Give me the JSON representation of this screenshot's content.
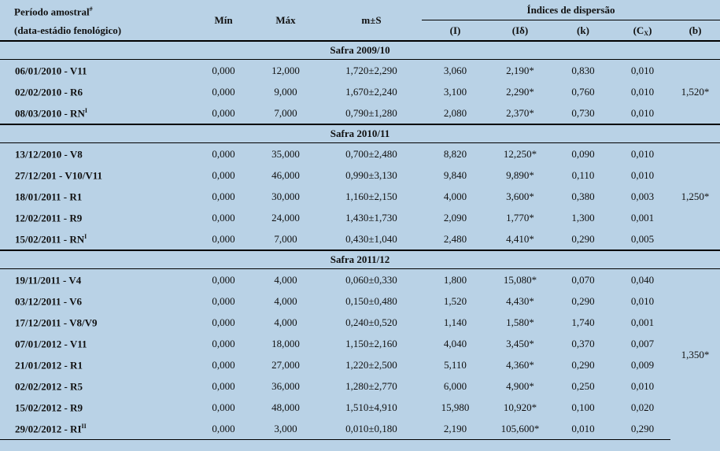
{
  "header": {
    "period_line1": "Período amostral",
    "period_sup": "#",
    "period_line2": "(data-estádio fenológico)",
    "min": "Mín",
    "max": "Máx",
    "mean": "m±S",
    "dispersion": "Índices de dispersão",
    "i": "(I)",
    "id": "(Iδ)",
    "k": "(k)",
    "cx_main": "(C",
    "cx_sub": "X",
    "cx_end": ")",
    "b": "(b)"
  },
  "groups": [
    {
      "title": "Safra 2009/10",
      "b": "1,520*",
      "rows": [
        {
          "period": "06/01/2010 - V11",
          "sup": "",
          "min": "0,000",
          "max": "12,000",
          "ms": "1,720±2,290",
          "i": "3,060",
          "id": "2,190*",
          "k": "0,830",
          "cx": "0,010"
        },
        {
          "period": "02/02/2010 - R6",
          "sup": "",
          "min": "0,000",
          "max": "9,000",
          "ms": "1,670±2,240",
          "i": "3,100",
          "id": "2,290*",
          "k": "0,760",
          "cx": "0,010"
        },
        {
          "period": "08/03/2010 - RN",
          "sup": "I",
          "min": "0,000",
          "max": "7,000",
          "ms": "0,790±1,280",
          "i": "2,080",
          "id": "2,370*",
          "k": "0,730",
          "cx": "0,010"
        }
      ]
    },
    {
      "title": "Safra 2010/11",
      "b": "1,250*",
      "rows": [
        {
          "period": "13/12/2010 - V8",
          "sup": "",
          "min": "0,000",
          "max": "35,000",
          "ms": "0,700±2,480",
          "i": "8,820",
          "id": "12,250*",
          "k": "0,090",
          "cx": "0,010"
        },
        {
          "period": "27/12/201 - V10/V11",
          "sup": "",
          "min": "0,000",
          "max": "46,000",
          "ms": "0,990±3,130",
          "i": "9,840",
          "id": "9,890*",
          "k": "0,110",
          "cx": "0,010"
        },
        {
          "period": "18/01/2011 - R1",
          "sup": "",
          "min": "0,000",
          "max": "30,000",
          "ms": "1,160±2,150",
          "i": "4,000",
          "id": "3,600*",
          "k": "0,380",
          "cx": "0,003"
        },
        {
          "period": "12/02/2011 - R9",
          "sup": "",
          "min": "0,000",
          "max": "24,000",
          "ms": "1,430±1,730",
          "i": "2,090",
          "id": "1,770*",
          "k": "1,300",
          "cx": "0,001"
        },
        {
          "period": "15/02/2011 - RN",
          "sup": "I",
          "min": "0,000",
          "max": "7,000",
          "ms": "0,430±1,040",
          "i": "2,480",
          "id": "4,410*",
          "k": "0,290",
          "cx": "0,005"
        }
      ]
    },
    {
      "title": "Safra 2011/12",
      "b": "1,350*",
      "rows": [
        {
          "period": "19/11/2011 - V4",
          "sup": "",
          "min": "0,000",
          "max": "4,000",
          "ms": "0,060±0,330",
          "i": "1,800",
          "id": "15,080*",
          "k": "0,070",
          "cx": "0,040"
        },
        {
          "period": "03/12/2011 - V6",
          "sup": "",
          "min": "0,000",
          "max": "4,000",
          "ms": "0,150±0,480",
          "i": "1,520",
          "id": "4,430*",
          "k": "0,290",
          "cx": "0,010"
        },
        {
          "period": "17/12/2011 - V8/V9",
          "sup": "",
          "min": "0,000",
          "max": "4,000",
          "ms": "0,240±0,520",
          "i": "1,140",
          "id": "1,580*",
          "k": "1,740",
          "cx": "0,001"
        },
        {
          "period": "07/01/2012 - V11",
          "sup": "",
          "min": "0,000",
          "max": "18,000",
          "ms": "1,150±2,160",
          "i": "4,040",
          "id": "3,450*",
          "k": "0,370",
          "cx": "0,007"
        },
        {
          "period": "21/01/2012 - R1",
          "sup": "",
          "min": "0,000",
          "max": "27,000",
          "ms": "1,220±2,500",
          "i": "5,110",
          "id": "4,360*",
          "k": "0,290",
          "cx": "0,009"
        },
        {
          "period": "02/02/2012 - R5",
          "sup": "",
          "min": "0,000",
          "max": "36,000",
          "ms": "1,280±2,770",
          "i": "6,000",
          "id": "4,900*",
          "k": "0,250",
          "cx": "0,010"
        },
        {
          "period": "15/02/2012 - R9",
          "sup": "",
          "min": "0,000",
          "max": "48,000",
          "ms": "1,510±4,910",
          "i": "15,980",
          "id": "10,920*",
          "k": "0,100",
          "cx": "0,020"
        },
        {
          "period": "29/02/2012 - RI",
          "sup": "II",
          "min": "0,000",
          "max": "3,000",
          "ms": "0,010±0,180",
          "i": "2,190",
          "id": "105,600*",
          "k": "0,010",
          "cx": "0,290"
        }
      ]
    }
  ]
}
